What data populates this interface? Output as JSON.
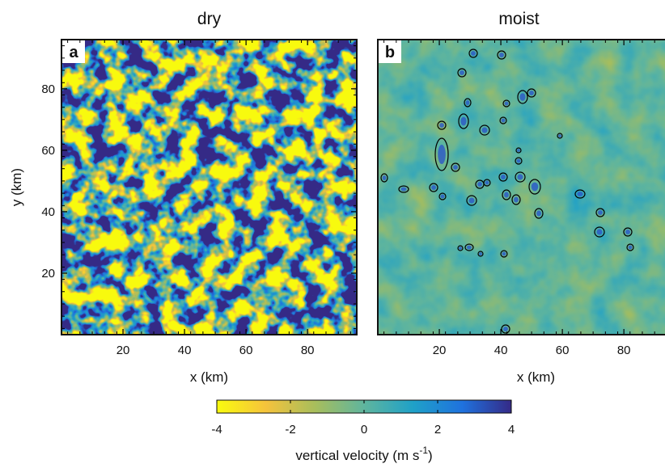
{
  "chart_data": [
    {
      "type": "heatmap",
      "title": "dry",
      "panel_label": "a",
      "xlabel": "x (km)",
      "ylabel": "y (km)",
      "xlim": [
        0,
        96
      ],
      "ylim": [
        0,
        96
      ],
      "xticks": [
        20,
        40,
        60,
        80
      ],
      "yticks": [
        20,
        40,
        60,
        80
      ],
      "field": "turbulent"
    },
    {
      "type": "heatmap",
      "title": "moist",
      "panel_label": "b",
      "xlabel": "x (km)",
      "xlim": [
        0,
        96
      ],
      "xticks": [
        20,
        40,
        60,
        80
      ],
      "field": "calm"
    }
  ],
  "colorbar": {
    "label": "vertical velocity (m s",
    "label_sup": "-1",
    "label_end": ")",
    "lim": [
      -4,
      4
    ],
    "ticks": [
      -4,
      -2,
      0,
      2,
      4
    ],
    "colors": [
      "#f9fb0e",
      "#f5c33c",
      "#a8be5c",
      "#5fb59e",
      "#1fa1c8",
      "#1f72de",
      "#352a87"
    ]
  }
}
